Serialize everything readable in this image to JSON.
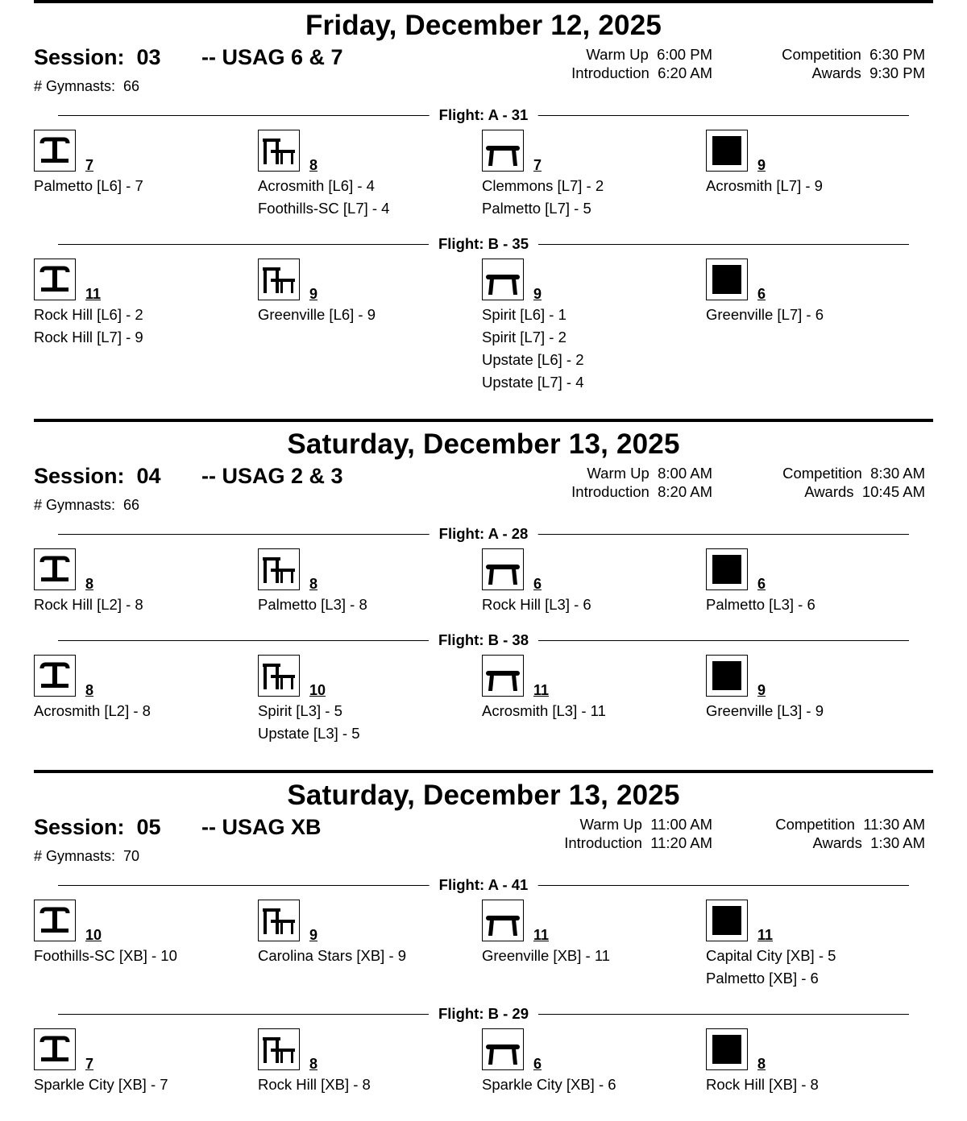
{
  "icons": {
    "vault": "vault-icon",
    "bars": "uneven-bars-icon",
    "beam": "balance-beam-icon",
    "floor": "floor-exercise-icon"
  },
  "time_labels": {
    "warmup": "Warm Up",
    "intro": "Introduction",
    "competition": "Competition",
    "awards": "Awards"
  },
  "sessions": [
    {
      "day": "Friday, December 12, 2025",
      "session": "Session:  03",
      "group": "-- USAG 6 & 7",
      "gymnasts": "# Gymnasts:  66",
      "times": {
        "warmup": "6:00 PM",
        "intro": "6:20 AM",
        "competition": "6:30 PM",
        "awards": "9:30 PM"
      },
      "flights": [
        {
          "label": "Flight: A - 31",
          "events": [
            {
              "event": "vault",
              "count": "7",
              "teams": [
                "Palmetto [L6] - 7"
              ]
            },
            {
              "event": "bars",
              "count": "8",
              "teams": [
                "Acrosmith [L6] - 4",
                "Foothills-SC [L7] - 4"
              ]
            },
            {
              "event": "beam",
              "count": "7",
              "teams": [
                "Clemmons [L7] - 2",
                "Palmetto [L7] - 5"
              ]
            },
            {
              "event": "floor",
              "count": "9",
              "teams": [
                "Acrosmith [L7] - 9"
              ]
            }
          ]
        },
        {
          "label": "Flight: B - 35",
          "events": [
            {
              "event": "vault",
              "count": "11",
              "teams": [
                "Rock Hill [L6] - 2",
                "Rock Hill [L7] - 9"
              ]
            },
            {
              "event": "bars",
              "count": "9",
              "teams": [
                "Greenville [L6] - 9"
              ]
            },
            {
              "event": "beam",
              "count": "9",
              "teams": [
                "Spirit [L6] - 1",
                "Spirit [L7] - 2",
                "Upstate [L6] - 2",
                "Upstate [L7] - 4"
              ]
            },
            {
              "event": "floor",
              "count": "6",
              "teams": [
                "Greenville [L7] - 6"
              ]
            }
          ]
        }
      ]
    },
    {
      "day": "Saturday, December 13, 2025",
      "session": "Session:  04",
      "group": "-- USAG 2 & 3",
      "gymnasts": "# Gymnasts:  66",
      "times": {
        "warmup": "8:00 AM",
        "intro": "8:20 AM",
        "competition": "8:30 AM",
        "awards": "10:45 AM"
      },
      "flights": [
        {
          "label": "Flight: A - 28",
          "events": [
            {
              "event": "vault",
              "count": "8",
              "teams": [
                "Rock Hill [L2] - 8"
              ]
            },
            {
              "event": "bars",
              "count": "8",
              "teams": [
                "Palmetto [L3] - 8"
              ]
            },
            {
              "event": "beam",
              "count": "6",
              "teams": [
                "Rock Hill [L3] - 6"
              ]
            },
            {
              "event": "floor",
              "count": "6",
              "teams": [
                "Palmetto [L3] - 6"
              ]
            }
          ]
        },
        {
          "label": "Flight: B - 38",
          "events": [
            {
              "event": "vault",
              "count": "8",
              "teams": [
                "Acrosmith [L2] - 8"
              ]
            },
            {
              "event": "bars",
              "count": "10",
              "teams": [
                "Spirit [L3] - 5",
                "Upstate [L3] - 5"
              ]
            },
            {
              "event": "beam",
              "count": "11",
              "teams": [
                "Acrosmith [L3] - 11"
              ]
            },
            {
              "event": "floor",
              "count": "9",
              "teams": [
                "Greenville [L3] - 9"
              ]
            }
          ]
        }
      ]
    },
    {
      "day": "Saturday, December 13, 2025",
      "session": "Session:  05",
      "group": "-- USAG XB",
      "gymnasts": "# Gymnasts:  70",
      "times": {
        "warmup": "11:00 AM",
        "intro": "11:20 AM",
        "competition": "11:30 AM",
        "awards": "1:30 AM"
      },
      "flights": [
        {
          "label": "Flight: A - 41",
          "events": [
            {
              "event": "vault",
              "count": "10",
              "teams": [
                "Foothills-SC [XB] - 10"
              ]
            },
            {
              "event": "bars",
              "count": "9",
              "teams": [
                "Carolina Stars [XB] - 9"
              ]
            },
            {
              "event": "beam",
              "count": "11",
              "teams": [
                "Greenville [XB] - 11"
              ]
            },
            {
              "event": "floor",
              "count": "11",
              "teams": [
                "Capital City [XB] - 5",
                "Palmetto [XB] - 6"
              ]
            }
          ]
        },
        {
          "label": "Flight: B - 29",
          "events": [
            {
              "event": "vault",
              "count": "7",
              "teams": [
                "Sparkle City [XB] - 7"
              ]
            },
            {
              "event": "bars",
              "count": "8",
              "teams": [
                "Rock Hill [XB] - 8"
              ]
            },
            {
              "event": "beam",
              "count": "6",
              "teams": [
                "Sparkle City [XB] - 6"
              ]
            },
            {
              "event": "floor",
              "count": "8",
              "teams": [
                "Rock Hill [XB] - 8"
              ]
            }
          ]
        }
      ]
    }
  ]
}
